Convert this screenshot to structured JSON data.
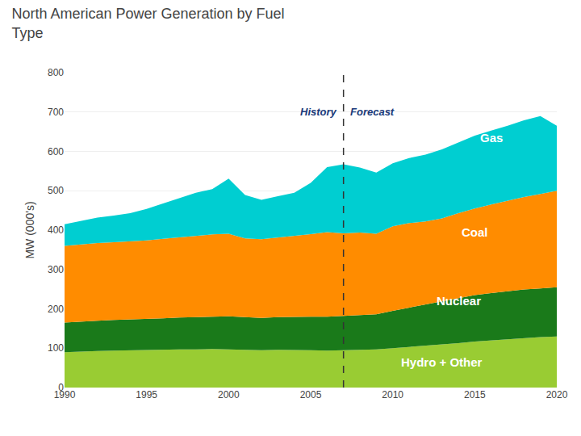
{
  "chart_data": {
    "type": "area",
    "stacked": true,
    "title": "North American Power Generation by Fuel\nType",
    "ylabel": "MW (000's)",
    "x": [
      1990,
      1991,
      1992,
      1993,
      1994,
      1995,
      1996,
      1997,
      1998,
      1999,
      2000,
      2001,
      2002,
      2003,
      2004,
      2005,
      2006,
      2007,
      2008,
      2009,
      2010,
      2011,
      2012,
      2013,
      2014,
      2015,
      2016,
      2017,
      2018,
      2019,
      2020
    ],
    "series": [
      {
        "name": "Hydro + Other",
        "color": "#99CC33",
        "values": [
          90,
          92,
          93,
          94,
          95,
          95,
          96,
          97,
          97,
          98,
          97,
          96,
          95,
          96,
          96,
          95,
          94,
          95,
          96,
          97,
          100,
          103,
          107,
          110,
          113,
          117,
          120,
          123,
          126,
          128,
          130
        ]
      },
      {
        "name": "Nuclear",
        "color": "#1a7a1a",
        "values": [
          75,
          76,
          77,
          78,
          78,
          79,
          80,
          81,
          82,
          83,
          84,
          83,
          82,
          83,
          84,
          85,
          86,
          87,
          88,
          89,
          95,
          100,
          105,
          110,
          115,
          118,
          120,
          122,
          123,
          124,
          125
        ]
      },
      {
        "name": "Coal",
        "color": "#FF8C00",
        "values": [
          195,
          196,
          197,
          197,
          198,
          200,
          202,
          204,
          206,
          208,
          210,
          200,
          200,
          202,
          205,
          210,
          215,
          210,
          210,
          205,
          215,
          215,
          210,
          210,
          215,
          220,
          225,
          230,
          235,
          240,
          245
        ]
      },
      {
        "name": "Gas",
        "color": "#00CED1",
        "values": [
          55,
          60,
          65,
          68,
          72,
          80,
          90,
          100,
          110,
          115,
          140,
          110,
          100,
          105,
          110,
          130,
          165,
          175,
          165,
          155,
          160,
          165,
          170,
          175,
          180,
          185,
          188,
          190,
          195,
          198,
          165
        ]
      }
    ],
    "annotations": [
      {
        "text": "Gas",
        "x": 2016,
        "y": 635
      },
      {
        "text": "Coal",
        "x": 2015,
        "y": 395
      },
      {
        "text": "Nuclear",
        "x": 2014,
        "y": 220
      },
      {
        "text": "Hydro + Other",
        "x": 2013,
        "y": 65
      }
    ],
    "divider": {
      "x": 2007,
      "label_y": 720,
      "left_label": "History",
      "right_label": "Forecast"
    },
    "xlim": [
      1990,
      2020
    ],
    "xticks": [
      1990,
      1995,
      2000,
      2005,
      2010,
      2015,
      2020
    ],
    "ylim": [
      0,
      800
    ],
    "yticks": [
      0,
      100,
      200,
      300,
      400,
      500,
      600,
      700,
      800
    ],
    "grid": true
  }
}
